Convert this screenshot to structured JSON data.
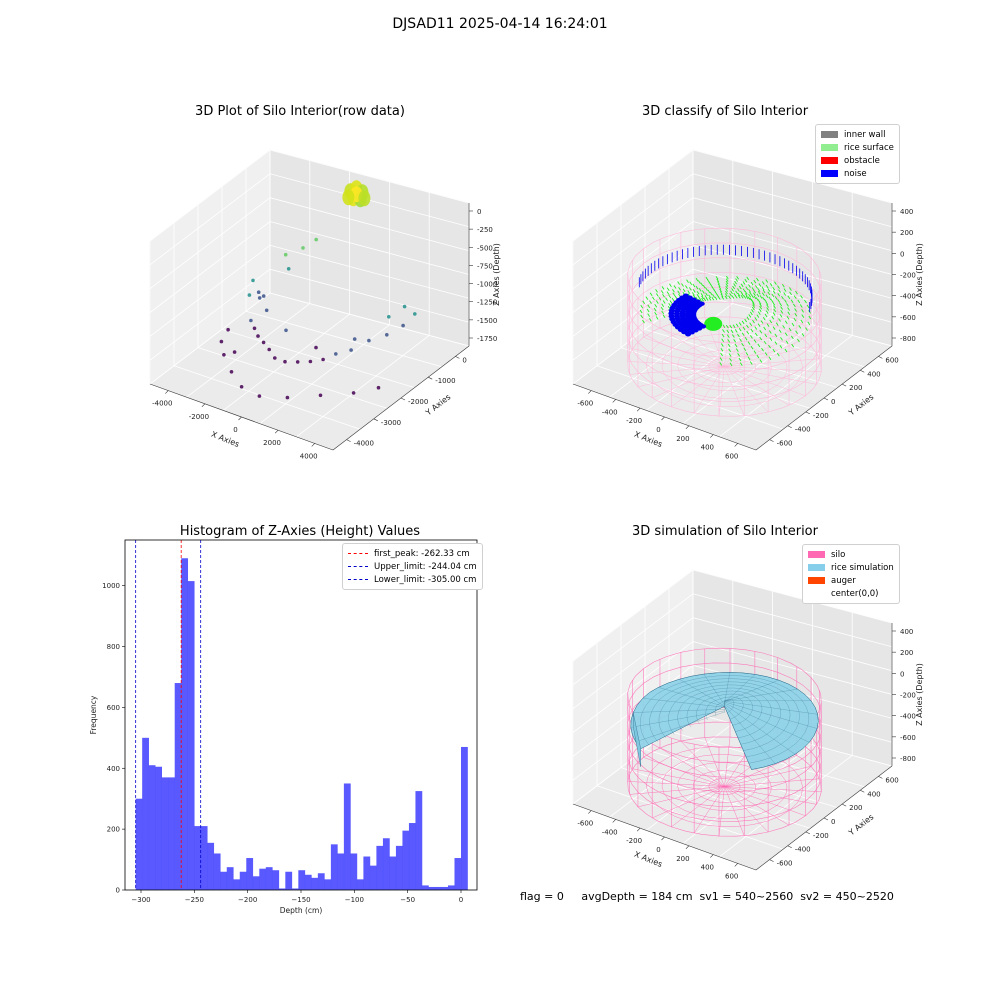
{
  "figure": {
    "suptitle": "DJSAD11 2025-04-14 16:24:01",
    "footer": "flag = 0     avgDepth = 184 cm  sv1 = 540~2560  sv2 = 450~2520"
  },
  "chart_data": [
    {
      "type": "scatter",
      "title": "3D Plot of Silo Interior(row data)",
      "xlabel": "X Axies",
      "ylabel": "Y Axies",
      "zlabel": "Z Axies (Depth)",
      "x_ticks": [
        "-4000",
        "-2000",
        "0",
        "2000",
        "4000"
      ],
      "y_ticks": [
        "-4000",
        "-3000",
        "-2000",
        "-1000",
        "0"
      ],
      "z_ticks": [
        "0",
        "-250",
        "-500",
        "-750",
        "-1000",
        "-1250",
        "-1500",
        "-1750"
      ],
      "points_xyz": [
        [
          0,
          0,
          0
        ],
        [
          -3200,
          -1500,
          -1100
        ],
        [
          -3000,
          -1800,
          -1200
        ],
        [
          -3300,
          -1200,
          -1350
        ],
        [
          -2800,
          -1900,
          -1500
        ],
        [
          -2500,
          -2000,
          -1550
        ],
        [
          -2200,
          -2100,
          -1600
        ],
        [
          -1800,
          -2200,
          -1620
        ],
        [
          -1400,
          -2300,
          -1650
        ],
        [
          -1000,
          -2400,
          -1700
        ],
        [
          -500,
          -2400,
          -1700
        ],
        [
          0,
          -2300,
          -1680
        ],
        [
          500,
          -2200,
          -1650
        ],
        [
          1000,
          -2100,
          -1600
        ],
        [
          1500,
          -2000,
          -1500
        ],
        [
          2000,
          -1800,
          -1450
        ],
        [
          2500,
          -1500,
          -1350
        ],
        [
          3000,
          -1200,
          -1300
        ],
        [
          3300,
          -800,
          -1250
        ],
        [
          3500,
          -500,
          -1150
        ],
        [
          -3500,
          -1000,
          -1500
        ],
        [
          -3000,
          -2800,
          -1750
        ],
        [
          -2000,
          -3300,
          -1750
        ],
        [
          -1000,
          -3700,
          -1750
        ],
        [
          0,
          -3800,
          -1750
        ],
        [
          1000,
          -3500,
          -1750
        ],
        [
          2000,
          -3000,
          -1750
        ],
        [
          3000,
          -2500,
          -1750
        ],
        [
          3600,
          -2000,
          -1750
        ],
        [
          -3500,
          -2500,
          -1700
        ],
        [
          -2600,
          -2700,
          -1700
        ],
        [
          -2400,
          -1600,
          -1400
        ],
        [
          -2800,
          -1400,
          -1300
        ],
        [
          -2200,
          -900,
          -1000
        ],
        [
          -2600,
          -700,
          -900
        ],
        [
          -2000,
          -500,
          -800
        ],
        [
          -1600,
          -300,
          -700
        ],
        [
          2600,
          -800,
          -1200
        ],
        [
          3000,
          -500,
          -1100
        ],
        [
          1800,
          -1500,
          -1400
        ],
        [
          -3800,
          -2000,
          -1700
        ],
        [
          -1200,
          -1800,
          -1500
        ],
        [
          400,
          -1900,
          -1550
        ]
      ],
      "colormap": "viridis"
    },
    {
      "type": "scatter",
      "title": "3D classify of Silo Interior",
      "xlabel": "X Axies",
      "ylabel": "Y Axies",
      "zlabel": "Z Axies (Depth)",
      "x_ticks": [
        "-600",
        "-400",
        "-200",
        "0",
        "200",
        "400",
        "600"
      ],
      "y_ticks": [
        "-600",
        "-400",
        "-200",
        "0",
        "200",
        "400",
        "600"
      ],
      "z_ticks": [
        "400",
        "200",
        "0",
        "-200",
        "-400",
        "-600",
        "-800"
      ],
      "legend": [
        {
          "label": "inner wall",
          "color": "#808080"
        },
        {
          "label": "rice surface",
          "color": "#90ee90"
        },
        {
          "label": "obstacle",
          "color": "#ff0000"
        },
        {
          "label": "noise",
          "color": "#0000ff"
        }
      ],
      "series_colors": {
        "silo_wireframe": "#ffb6d9",
        "rice": "#22ee22",
        "noise": "#0000ee"
      }
    },
    {
      "type": "bar",
      "title": "Histogram of Z-Axies (Height) Values",
      "xlabel": "Depth (cm)",
      "ylabel": "Frequency",
      "xlim": [
        -315,
        15
      ],
      "ylim": [
        0,
        1150
      ],
      "x_ticks": [
        -300,
        -250,
        -200,
        -150,
        -100,
        -50,
        0
      ],
      "y_ticks": [
        0,
        200,
        400,
        600,
        800,
        1000
      ],
      "bin_start": -305,
      "bin_width": 6.1,
      "values": [
        300,
        500,
        410,
        405,
        370,
        370,
        680,
        1090,
        1015,
        210,
        210,
        155,
        120,
        60,
        75,
        35,
        60,
        105,
        45,
        70,
        75,
        65,
        5,
        60,
        5,
        65,
        50,
        40,
        55,
        35,
        150,
        120,
        350,
        120,
        35,
        110,
        80,
        145,
        170,
        110,
        145,
        195,
        220,
        325,
        15,
        10,
        10,
        10,
        15,
        105,
        470
      ],
      "bar_color": "#5050ff",
      "vlines": [
        {
          "label": "first_peak: -262.33 cm",
          "x": -262.33,
          "color": "#ff0000"
        },
        {
          "label": "Upper_limit: -244.04 cm",
          "x": -244.04,
          "color": "#0000cc"
        },
        {
          "label": "Lower_limit: -305.00 cm",
          "x": -305.0,
          "color": "#0000cc"
        }
      ]
    },
    {
      "type": "area",
      "title": "3D simulation of Silo Interior",
      "xlabel": "X Axies",
      "ylabel": "Y Axies",
      "zlabel": "Z Axies (Depth)",
      "x_ticks": [
        "-600",
        "-400",
        "-200",
        "0",
        "200",
        "400",
        "600"
      ],
      "y_ticks": [
        "-600",
        "-400",
        "-200",
        "0",
        "200",
        "400",
        "600"
      ],
      "z_ticks": [
        "400",
        "200",
        "0",
        "-200",
        "-400",
        "-600",
        "-800"
      ],
      "legend": [
        {
          "label": "silo",
          "color": "#ff69b4"
        },
        {
          "label": "rice simulation",
          "color": "#87ceeb"
        },
        {
          "label": "auger",
          "color": "#ff4500"
        },
        {
          "label": "center(0,0)",
          "color": ""
        }
      ],
      "series_colors": {
        "silo_wireframe": "#ff69b4",
        "rice_surface": "#8fd3e8",
        "mesh_line": "#2a6a8a"
      }
    }
  ]
}
